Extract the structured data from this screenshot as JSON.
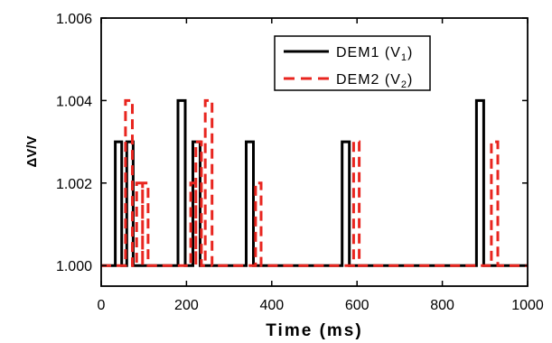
{
  "chart_data": {
    "type": "line",
    "xlabel": "Time (ms)",
    "ylabel": "ΔV/V",
    "xlim": [
      0,
      1000
    ],
    "ylim": [
      0.9995,
      1.006
    ],
    "xticks": [
      0,
      200,
      400,
      600,
      800,
      1000
    ],
    "xtick_labels": [
      "0",
      "200",
      "400",
      "600",
      "800",
      "1000"
    ],
    "yticks": [
      1.0,
      1.002,
      1.004,
      1.006
    ],
    "ytick_labels": [
      "1.000",
      "1.002",
      "1.004",
      "1.006"
    ],
    "grid": false,
    "legend_position": "top-right",
    "series": [
      {
        "name": "DEM1 (V1)",
        "legend_main": "DEM1 (V",
        "legend_sub": "1",
        "legend_tail": ")",
        "color": "#000000",
        "style": "solid",
        "baseline": 1.0,
        "pulses": [
          {
            "start": 33,
            "end": 48,
            "value": 1.003
          },
          {
            "start": 60,
            "end": 75,
            "value": 1.003
          },
          {
            "start": 180,
            "end": 197,
            "value": 1.004
          },
          {
            "start": 215,
            "end": 232,
            "value": 1.003
          },
          {
            "start": 340,
            "end": 357,
            "value": 1.003
          },
          {
            "start": 565,
            "end": 582,
            "value": 1.003
          },
          {
            "start": 880,
            "end": 897,
            "value": 1.004
          }
        ]
      },
      {
        "name": "DEM2 (V2)",
        "legend_main": "DEM2 (V",
        "legend_sub": "2",
        "legend_tail": ")",
        "color": "#e8251f",
        "style": "dashed",
        "baseline": 1.0,
        "pulses": [
          {
            "start": 57,
            "end": 73,
            "value": 1.004
          },
          {
            "start": 83,
            "end": 97,
            "value": 1.002
          },
          {
            "start": 97,
            "end": 110,
            "value": 1.002
          },
          {
            "start": 210,
            "end": 222,
            "value": 1.002
          },
          {
            "start": 222,
            "end": 235,
            "value": 1.003
          },
          {
            "start": 244,
            "end": 260,
            "value": 1.004
          },
          {
            "start": 362,
            "end": 375,
            "value": 1.002
          },
          {
            "start": 592,
            "end": 605,
            "value": 1.003
          },
          {
            "start": 915,
            "end": 930,
            "value": 1.003
          }
        ]
      }
    ]
  }
}
